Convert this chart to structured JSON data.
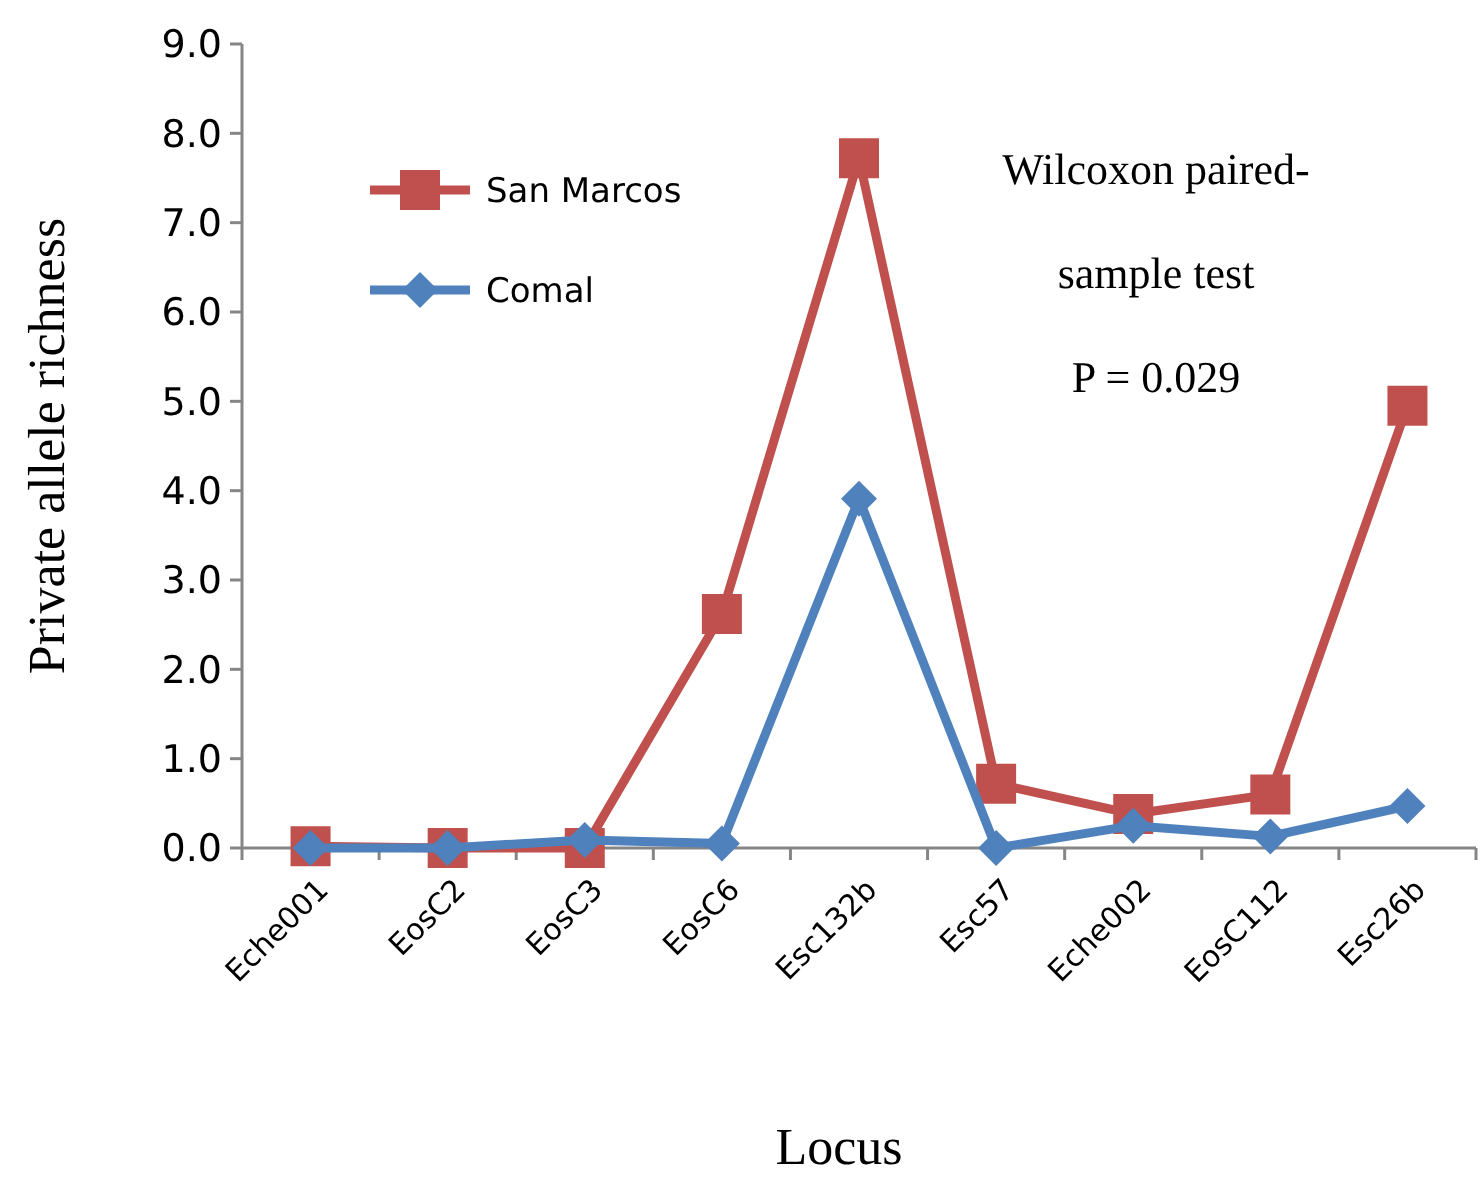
{
  "chart_data": {
    "type": "line",
    "xlabel": "Locus",
    "ylabel": "Private  allele  richness",
    "categories": [
      "Eche001",
      "EosC2",
      "EosC3",
      "EosC6",
      "Esc132b",
      "Esc57",
      "Eche002",
      "EosC112",
      "Esc26b"
    ],
    "series": [
      {
        "name": "San Marcos",
        "color": "#c0504d",
        "marker": "square",
        "values": [
          0.02,
          0.0,
          0.0,
          2.62,
          7.72,
          0.72,
          0.38,
          0.6,
          4.95
        ]
      },
      {
        "name": "Comal",
        "color": "#4f81bd",
        "marker": "diamond",
        "values": [
          0.0,
          0.0,
          0.09,
          0.05,
          3.91,
          0.0,
          0.25,
          0.13,
          0.47
        ]
      }
    ],
    "ylim": [
      0,
      9
    ],
    "yticks": [
      {
        "value": 0,
        "label": "0.0"
      },
      {
        "value": 1,
        "label": "1.0"
      },
      {
        "value": 2,
        "label": "2.0"
      },
      {
        "value": 3,
        "label": "3.0"
      },
      {
        "value": 4,
        "label": "4.0"
      },
      {
        "value": 5,
        "label": "5.0"
      },
      {
        "value": 6,
        "label": "6.0"
      },
      {
        "value": 7,
        "label": "7.0"
      },
      {
        "value": 8,
        "label": "8.0"
      },
      {
        "value": 9,
        "label": "9.0"
      }
    ],
    "grid": false,
    "legend": "top left",
    "line_style": "solid",
    "annotations": [
      "Wilcoxon paired-",
      "sample test",
      "P = 0.029"
    ]
  }
}
